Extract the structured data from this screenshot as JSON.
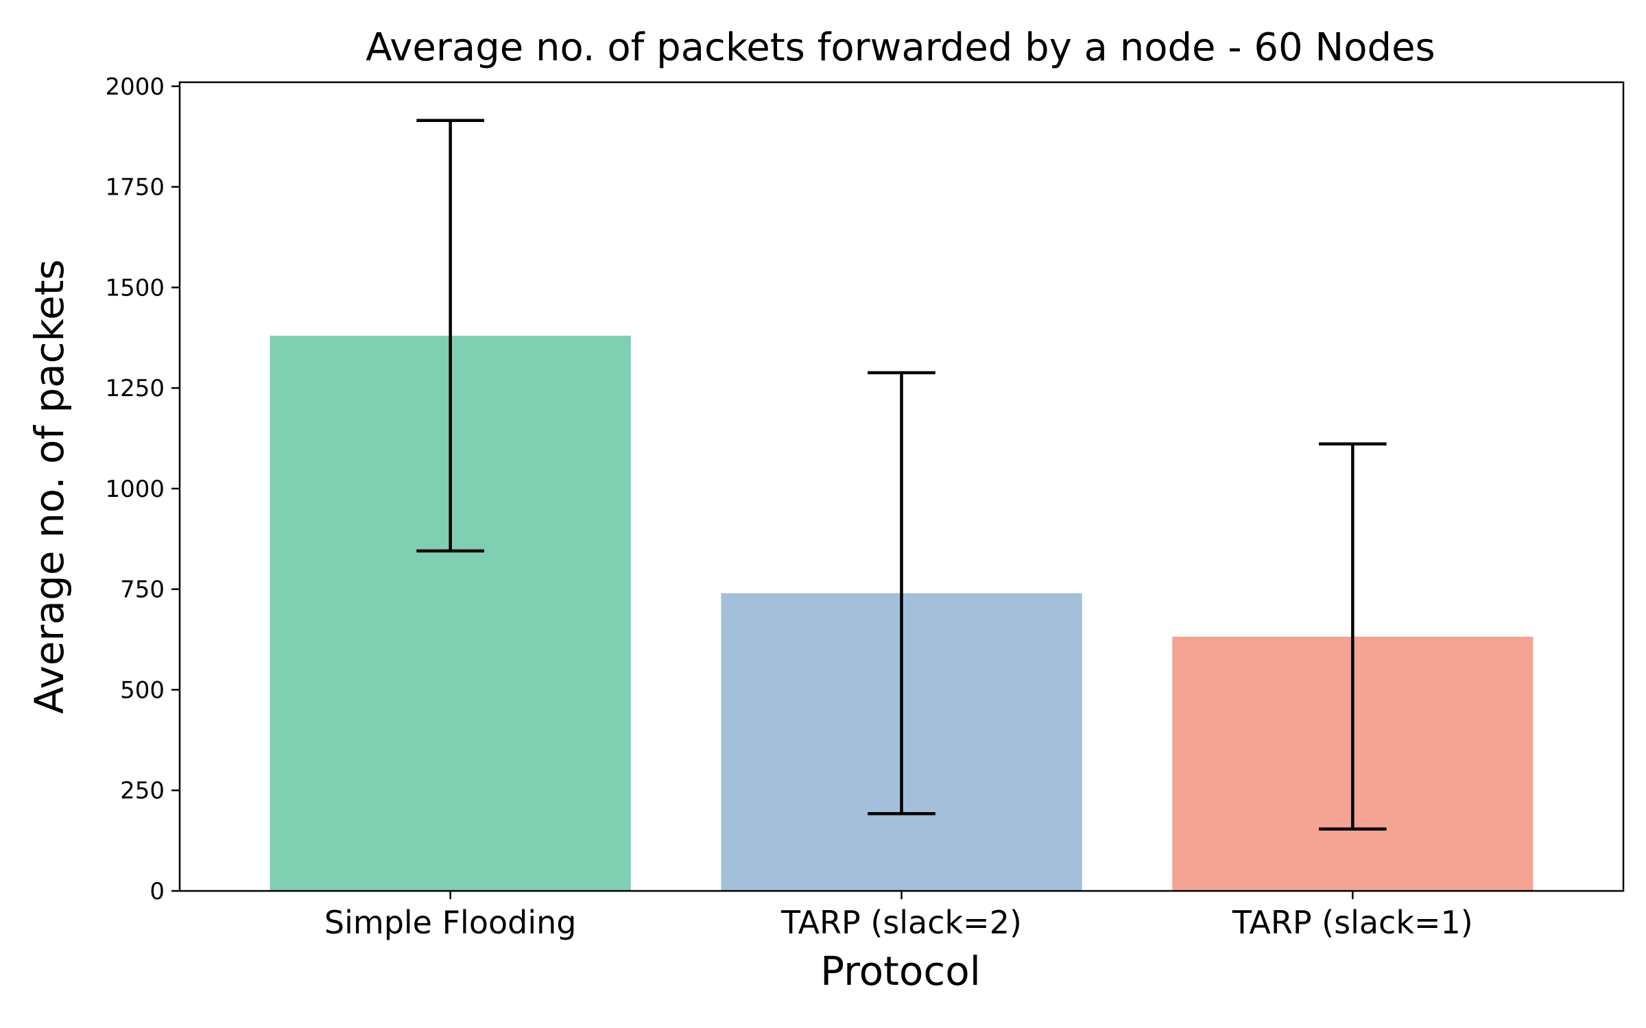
{
  "chart_data": {
    "type": "bar",
    "title": "Average no. of packets forwarded by a node - 60 Nodes",
    "xlabel": "Protocol",
    "ylabel": "Average no. of packets",
    "categories": [
      "Simple Flooding",
      "TARP (slack=2)",
      "TARP (slack=1)"
    ],
    "values": [
      1380,
      740,
      632
    ],
    "error_bars": [
      {
        "low": 845,
        "high": 1915
      },
      {
        "low": 192,
        "high": 1288
      },
      {
        "low": 154,
        "high": 1111
      }
    ],
    "colors": [
      "#80cfb3",
      "#a3bfda",
      "#f5a493"
    ],
    "ylim": [
      0,
      2010
    ],
    "yticks": [
      0,
      250,
      500,
      750,
      1000,
      1250,
      1500,
      1750,
      2000
    ],
    "grid": false,
    "legend": "none"
  }
}
